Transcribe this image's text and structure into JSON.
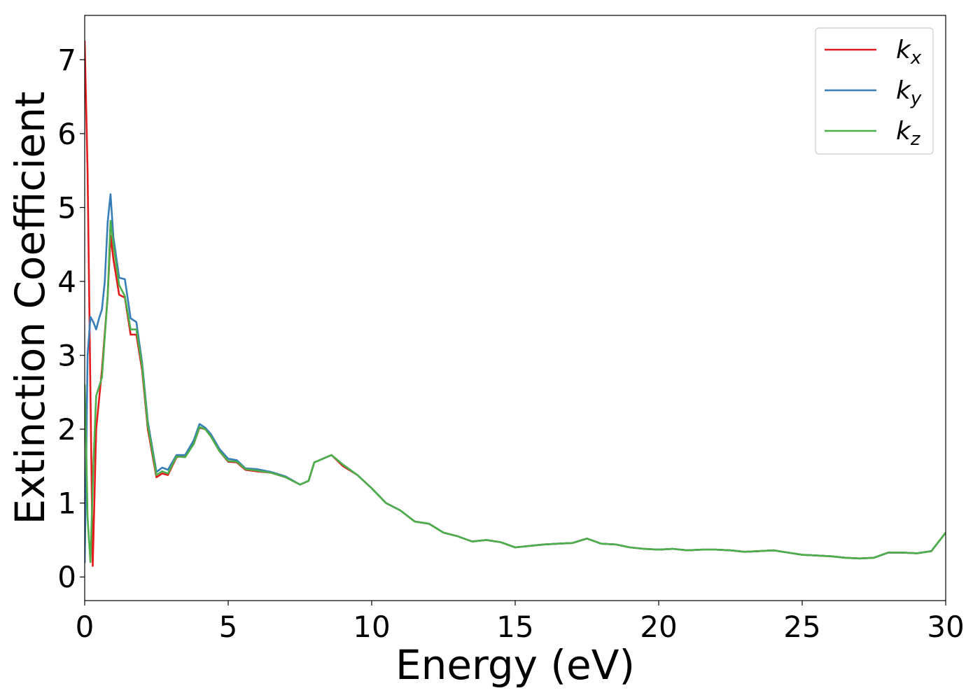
{
  "chart_data": {
    "type": "line",
    "title": "",
    "xlabel": "Energy (eV)",
    "ylabel": "Extinction Coefficient",
    "xlim": [
      0,
      30
    ],
    "ylim": [
      -0.32,
      7.6
    ],
    "xticks": [
      0,
      5,
      10,
      15,
      20,
      25,
      30
    ],
    "yticks": [
      0,
      1,
      2,
      3,
      4,
      5,
      6,
      7
    ],
    "grid": false,
    "legend_position": "top-right",
    "series": [
      {
        "name": "k",
        "subscript": "x",
        "color": "#e41a1c",
        "x": [
          0.0,
          0.1,
          0.2,
          0.28,
          0.4,
          0.6,
          0.8,
          0.9,
          1.0,
          1.2,
          1.4,
          1.6,
          1.8,
          2.0,
          2.2,
          2.5,
          2.7,
          2.9,
          3.2,
          3.5,
          3.8,
          4.0,
          4.2,
          4.4,
          4.7,
          5.0,
          5.3,
          5.6,
          6.0,
          6.5,
          7.0,
          7.5,
          7.8,
          8.0,
          8.3,
          8.6,
          9.0,
          9.5,
          10.0,
          10.5,
          11.0,
          11.5,
          12.0,
          12.5,
          13.0,
          13.5,
          14.0,
          14.5,
          15.0,
          15.5,
          16.0,
          16.5,
          17.0,
          17.5,
          18.0,
          18.5,
          19.0,
          19.5,
          20.0,
          20.5,
          21.0,
          21.5,
          22.0,
          22.5,
          23.0,
          23.5,
          24.0,
          24.5,
          25.0,
          25.5,
          26.0,
          26.5,
          27.0,
          27.5,
          28.0,
          28.5,
          29.0,
          29.5,
          30.0
        ],
        "values": [
          7.25,
          5.5,
          2.5,
          0.15,
          2.0,
          2.8,
          3.8,
          4.62,
          4.3,
          3.82,
          3.78,
          3.28,
          3.28,
          2.8,
          2.0,
          1.35,
          1.4,
          1.38,
          1.62,
          1.65,
          1.8,
          2.02,
          2.0,
          1.9,
          1.7,
          1.56,
          1.55,
          1.45,
          1.43,
          1.41,
          1.35,
          1.25,
          1.3,
          1.55,
          1.6,
          1.65,
          1.5,
          1.38,
          1.2,
          1.0,
          0.9,
          0.75,
          0.72,
          0.6,
          0.55,
          0.48,
          0.5,
          0.47,
          0.4,
          0.42,
          0.44,
          0.45,
          0.46,
          0.52,
          0.45,
          0.44,
          0.4,
          0.38,
          0.37,
          0.38,
          0.36,
          0.37,
          0.37,
          0.36,
          0.34,
          0.35,
          0.36,
          0.33,
          0.3,
          0.29,
          0.28,
          0.26,
          0.25,
          0.26,
          0.33,
          0.33,
          0.32,
          0.35,
          0.6
        ]
      },
      {
        "name": "k",
        "subscript": "y",
        "color": "#377eb8",
        "x": [
          0.0,
          0.05,
          0.1,
          0.2,
          0.3,
          0.4,
          0.5,
          0.6,
          0.7,
          0.8,
          0.9,
          1.0,
          1.2,
          1.4,
          1.6,
          1.8,
          2.0,
          2.2,
          2.5,
          2.7,
          2.9,
          3.2,
          3.5,
          3.8,
          4.0,
          4.2,
          4.4,
          4.7,
          5.0,
          5.3,
          5.6,
          6.0,
          6.5,
          7.0,
          7.5,
          7.8,
          8.0,
          8.3,
          8.6,
          9.0,
          9.5,
          10.0,
          10.5,
          11.0,
          11.5,
          12.0,
          12.5,
          13.0,
          13.5,
          14.0,
          14.5,
          15.0,
          15.5,
          16.0,
          16.5,
          17.0,
          17.5,
          18.0,
          18.5,
          19.0,
          19.5,
          20.0,
          20.5,
          21.0,
          21.5,
          22.0,
          22.5,
          23.0,
          23.5,
          24.0,
          24.5,
          25.0,
          25.5,
          26.0,
          26.5,
          27.0,
          27.5,
          28.0,
          28.5,
          29.0,
          29.5,
          30.0
        ],
        "values": [
          0.2,
          1.5,
          3.0,
          3.52,
          3.45,
          3.35,
          3.5,
          3.62,
          4.0,
          4.8,
          5.18,
          4.6,
          4.05,
          4.03,
          3.5,
          3.45,
          2.9,
          2.1,
          1.42,
          1.48,
          1.45,
          1.65,
          1.65,
          1.85,
          2.07,
          2.02,
          1.93,
          1.73,
          1.6,
          1.58,
          1.47,
          1.46,
          1.42,
          1.36,
          1.25,
          1.3,
          1.55,
          1.6,
          1.65,
          1.52,
          1.38,
          1.2,
          1.0,
          0.9,
          0.75,
          0.72,
          0.6,
          0.55,
          0.48,
          0.5,
          0.47,
          0.4,
          0.42,
          0.44,
          0.45,
          0.46,
          0.52,
          0.45,
          0.44,
          0.4,
          0.38,
          0.37,
          0.38,
          0.36,
          0.37,
          0.37,
          0.36,
          0.34,
          0.35,
          0.36,
          0.33,
          0.3,
          0.29,
          0.28,
          0.26,
          0.25,
          0.26,
          0.33,
          0.33,
          0.32,
          0.35,
          0.6
        ]
      },
      {
        "name": "k",
        "subscript": "z",
        "color": "#4daf4a",
        "x": [
          0.0,
          0.05,
          0.1,
          0.2,
          0.3,
          0.4,
          0.6,
          0.8,
          0.9,
          1.0,
          1.2,
          1.4,
          1.6,
          1.8,
          2.0,
          2.2,
          2.5,
          2.7,
          2.9,
          3.2,
          3.5,
          3.8,
          4.0,
          4.2,
          4.4,
          4.7,
          5.0,
          5.3,
          5.6,
          6.0,
          6.5,
          7.0,
          7.5,
          7.8,
          8.0,
          8.3,
          8.6,
          9.0,
          9.5,
          10.0,
          10.5,
          11.0,
          11.5,
          12.0,
          12.5,
          13.0,
          13.5,
          14.0,
          14.5,
          15.0,
          15.5,
          16.0,
          16.5,
          17.0,
          17.5,
          18.0,
          18.5,
          19.0,
          19.5,
          20.0,
          20.5,
          21.0,
          21.5,
          22.0,
          22.5,
          23.0,
          23.5,
          24.0,
          24.5,
          25.0,
          25.5,
          26.0,
          26.5,
          27.0,
          27.5,
          28.0,
          28.5,
          29.0,
          29.5,
          30.0
        ],
        "values": [
          2.6,
          1.8,
          0.8,
          0.2,
          1.5,
          2.45,
          2.7,
          3.8,
          4.82,
          4.5,
          3.95,
          3.8,
          3.35,
          3.35,
          2.85,
          2.05,
          1.38,
          1.43,
          1.4,
          1.63,
          1.62,
          1.8,
          2.03,
          2.0,
          1.9,
          1.7,
          1.57,
          1.56,
          1.46,
          1.44,
          1.41,
          1.35,
          1.25,
          1.3,
          1.55,
          1.6,
          1.65,
          1.52,
          1.38,
          1.2,
          1.0,
          0.9,
          0.75,
          0.72,
          0.6,
          0.55,
          0.48,
          0.5,
          0.47,
          0.4,
          0.42,
          0.44,
          0.45,
          0.46,
          0.52,
          0.45,
          0.44,
          0.4,
          0.38,
          0.37,
          0.38,
          0.36,
          0.37,
          0.37,
          0.36,
          0.34,
          0.35,
          0.36,
          0.33,
          0.3,
          0.29,
          0.28,
          0.26,
          0.25,
          0.26,
          0.33,
          0.33,
          0.32,
          0.35,
          0.6
        ]
      }
    ]
  }
}
